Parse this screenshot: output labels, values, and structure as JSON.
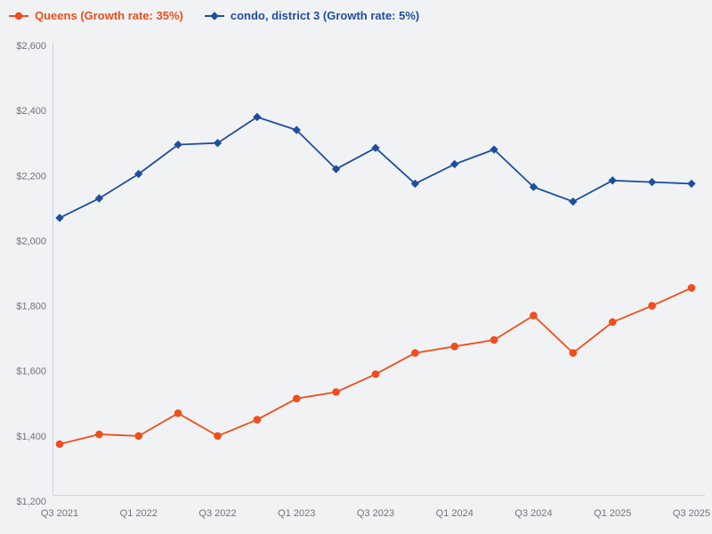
{
  "page": {
    "background_color": "#f1f2f4"
  },
  "chart_data": {
    "type": "line",
    "title": "",
    "xlabel": "",
    "ylabel": "",
    "grid": false,
    "legend_position": "top-left",
    "axis_color": "#c9d3e4",
    "tick_text_color": "#6f747d",
    "ylim": [
      1200,
      2600
    ],
    "categories": [
      "Q3 2021",
      "Q4 2021",
      "Q1 2022",
      "Q2 2022",
      "Q3 2022",
      "Q4 2022",
      "Q1 2023",
      "Q2 2023",
      "Q3 2023",
      "Q4 2023",
      "Q1 2024",
      "Q2 2024",
      "Q3 2024",
      "Q4 2024",
      "Q1 2025",
      "Q2 2025",
      "Q3 2025"
    ],
    "x_tick_labels": [
      "Q3 2021",
      "Q1 2022",
      "Q3 2022",
      "Q1 2023",
      "Q3 2023",
      "Q1 2024",
      "Q3 2024",
      "Q1 2025",
      "Q3 2025"
    ],
    "y_ticks": [
      {
        "value": 1200,
        "label": "$1,200"
      },
      {
        "value": 1400,
        "label": "$1,400"
      },
      {
        "value": 1600,
        "label": "$1,600"
      },
      {
        "value": 1800,
        "label": "$1,800"
      },
      {
        "value": 2000,
        "label": "$2,000"
      },
      {
        "value": 2200,
        "label": "$2,200"
      },
      {
        "value": 2400,
        "label": "$2,400"
      },
      {
        "value": 2600,
        "label": "$2,600"
      }
    ],
    "series": [
      {
        "name": "Queens (Growth rate: 35%)",
        "color": "#f04e1c",
        "marker": "circle",
        "values": [
          1375,
          1405,
          1400,
          1470,
          1400,
          1450,
          1515,
          1535,
          1590,
          1655,
          1675,
          1695,
          1770,
          1655,
          1750,
          1800,
          1855
        ]
      },
      {
        "name": "condo, district 3 (Growth rate: 5%)",
        "color": "#1f4e9c",
        "marker": "diamond",
        "values": [
          2070,
          2130,
          2205,
          2295,
          2300,
          2380,
          2340,
          2220,
          2285,
          2175,
          2235,
          2280,
          2165,
          2120,
          2185,
          2180,
          2175
        ]
      }
    ]
  }
}
